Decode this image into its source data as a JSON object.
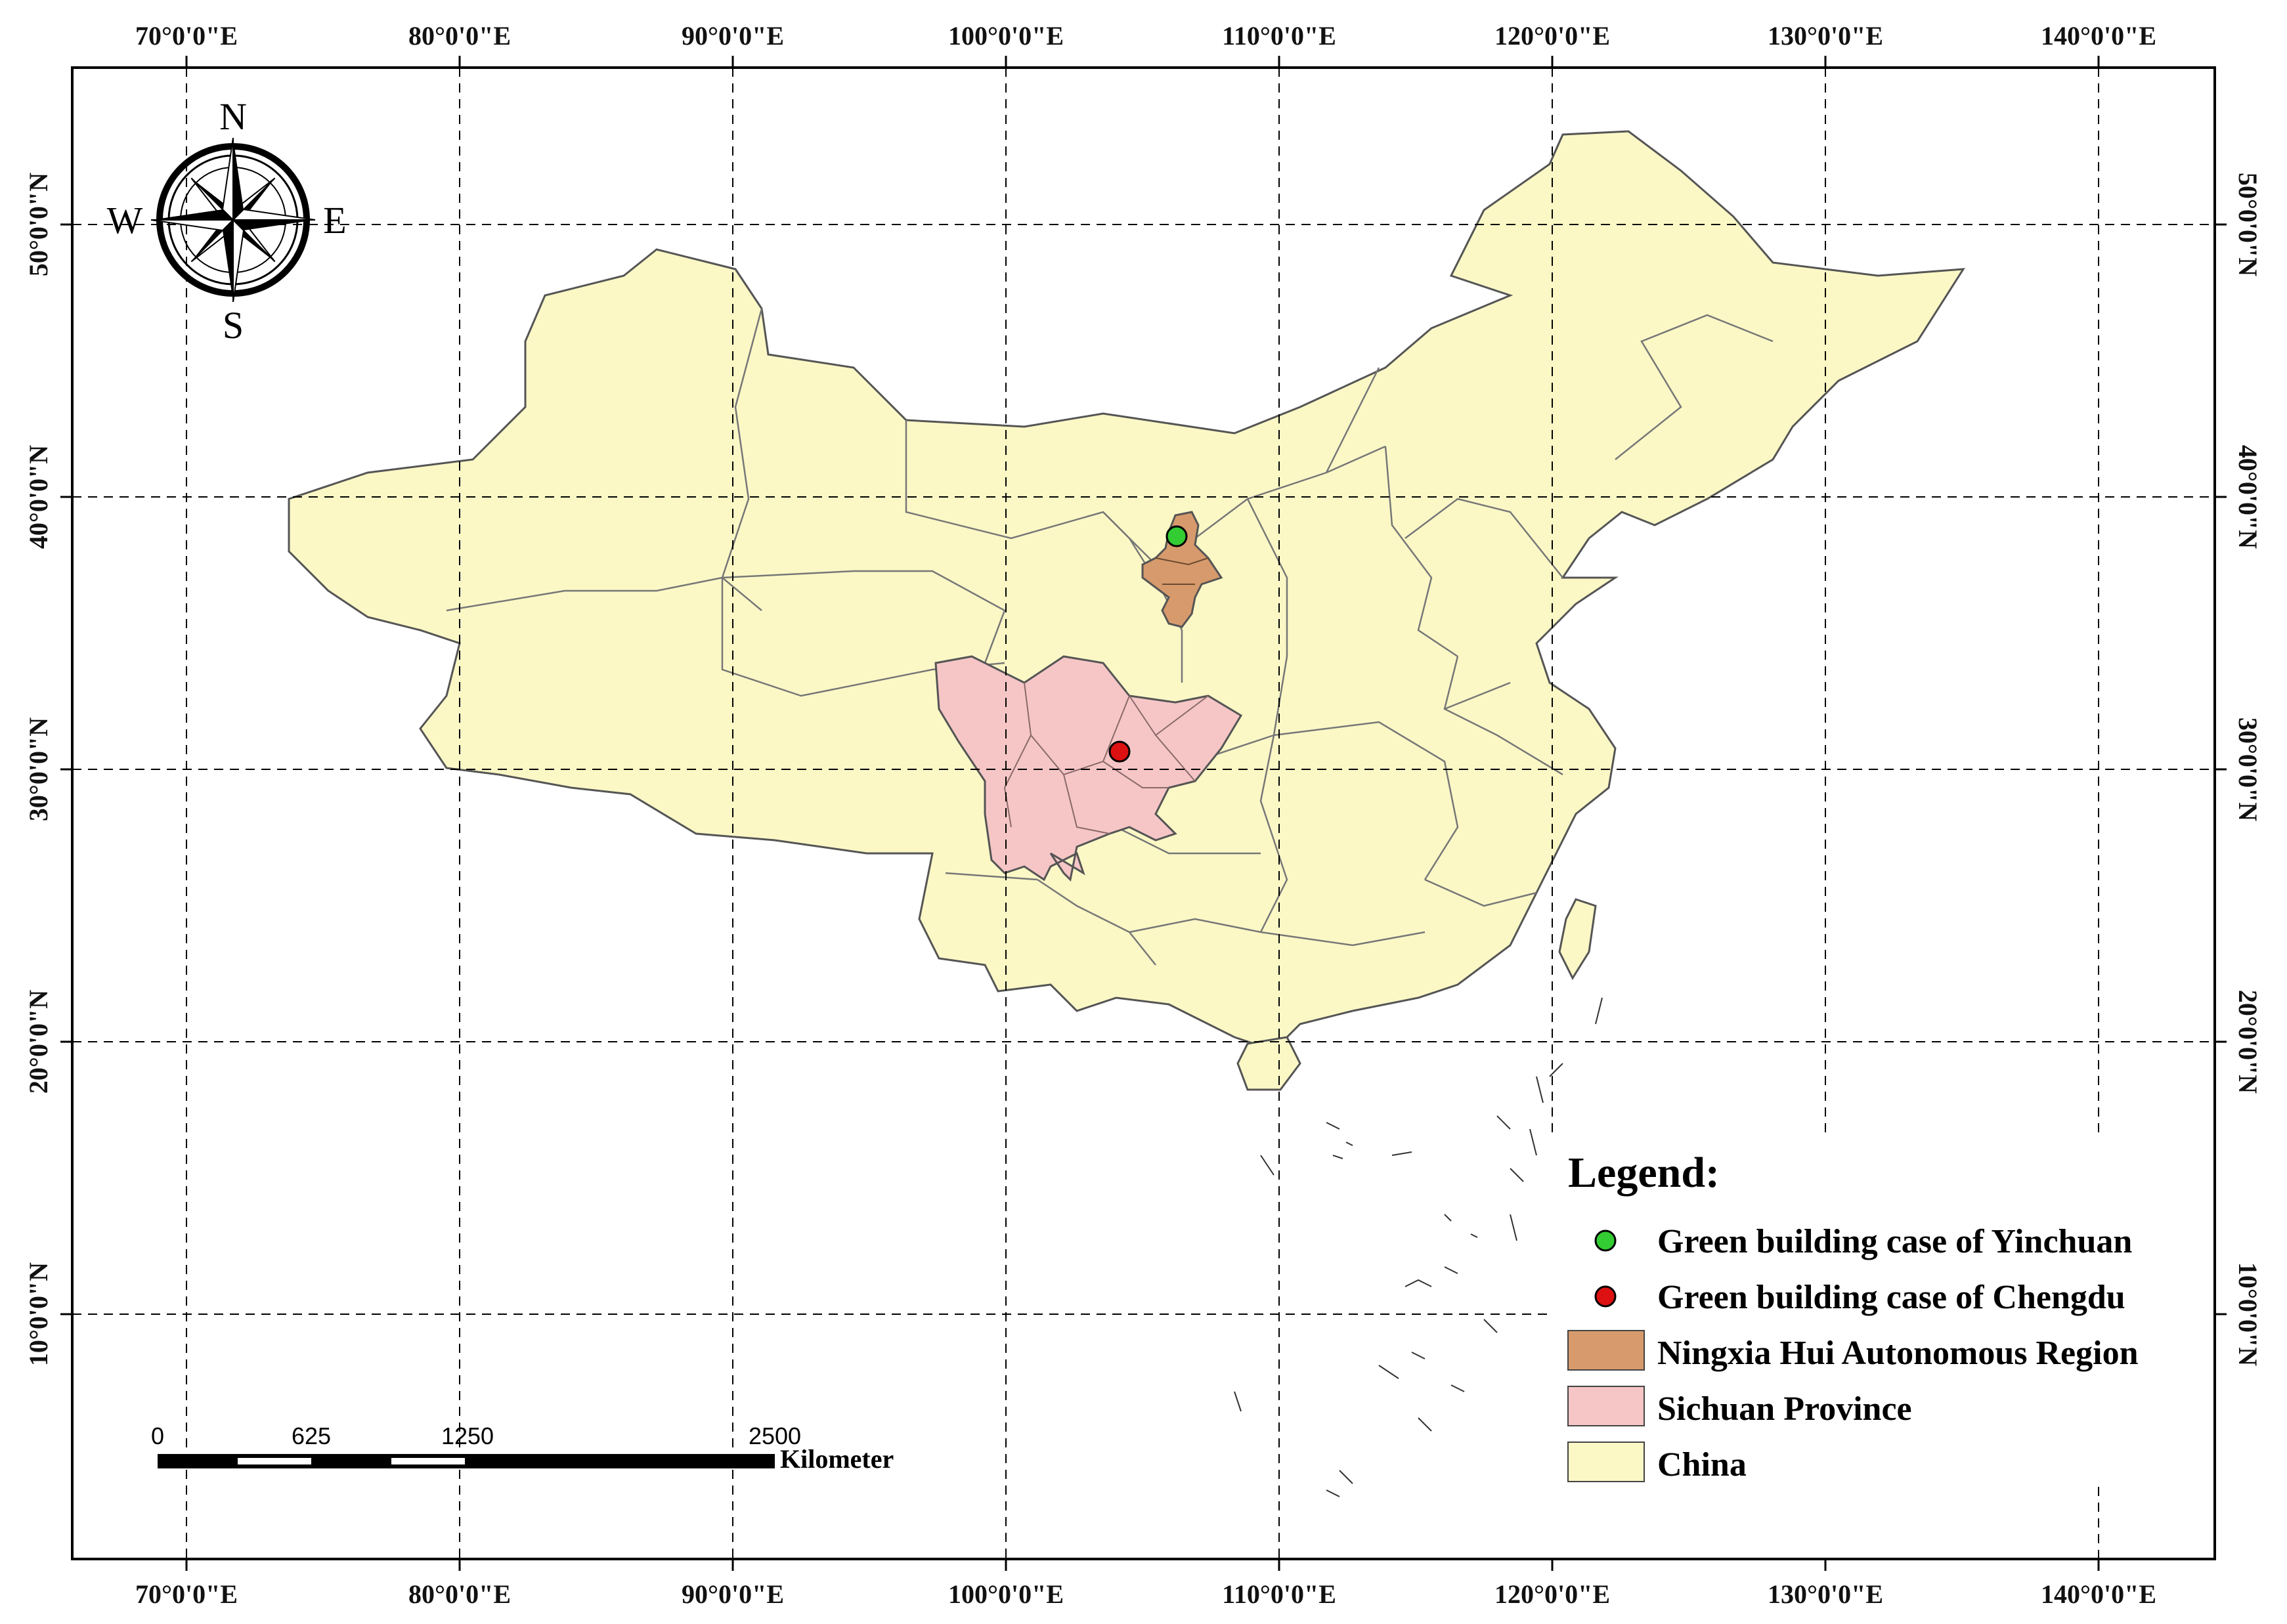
{
  "map": {
    "lon_ticks": [
      "70°0'0\"E",
      "80°0'0\"E",
      "90°0'0\"E",
      "100°0'0\"E",
      "110°0'0\"E",
      "120°0'0\"E",
      "130°0'0\"E",
      "140°0'0\"E"
    ],
    "lat_ticks": [
      "10°0'0\"N",
      "20°0'0\"N",
      "30°0'0\"N",
      "40°0'0\"N",
      "50°0'0\"N"
    ],
    "graticule": "dashed",
    "colors": {
      "china_fill": "#fbf8c6",
      "sichuan_fill": "#f6c6c6",
      "ningxia_fill": "#d79a6c",
      "yinchuan_point": "#33cc33",
      "chengdu_point": "#dd1111",
      "boundary": "#555555"
    }
  },
  "compass": {
    "n": "N",
    "s": "S",
    "e": "E",
    "w": "W"
  },
  "scale_bar": {
    "labels": [
      "0",
      "625",
      "1250",
      "2500"
    ],
    "unit": "Kilometer"
  },
  "legend": {
    "title": "Legend:",
    "items": [
      {
        "label": "Green building case of Yinchuan",
        "symbol": "point",
        "color": "#33cc33"
      },
      {
        "label": "Green building case of Chengdu",
        "symbol": "point",
        "color": "#dd1111"
      },
      {
        "label": "Ningxia Hui Autonomous Region",
        "symbol": "patch",
        "color": "#d79a6c"
      },
      {
        "label": "Sichuan Province",
        "symbol": "patch",
        "color": "#f6c6c6"
      },
      {
        "label": "China",
        "symbol": "patch",
        "color": "#fbf8c6"
      }
    ]
  },
  "points": [
    {
      "name": "Yinchuan",
      "lon": 106.3,
      "lat": 38.5
    },
    {
      "name": "Chengdu",
      "lon": 104.1,
      "lat": 30.7
    }
  ]
}
